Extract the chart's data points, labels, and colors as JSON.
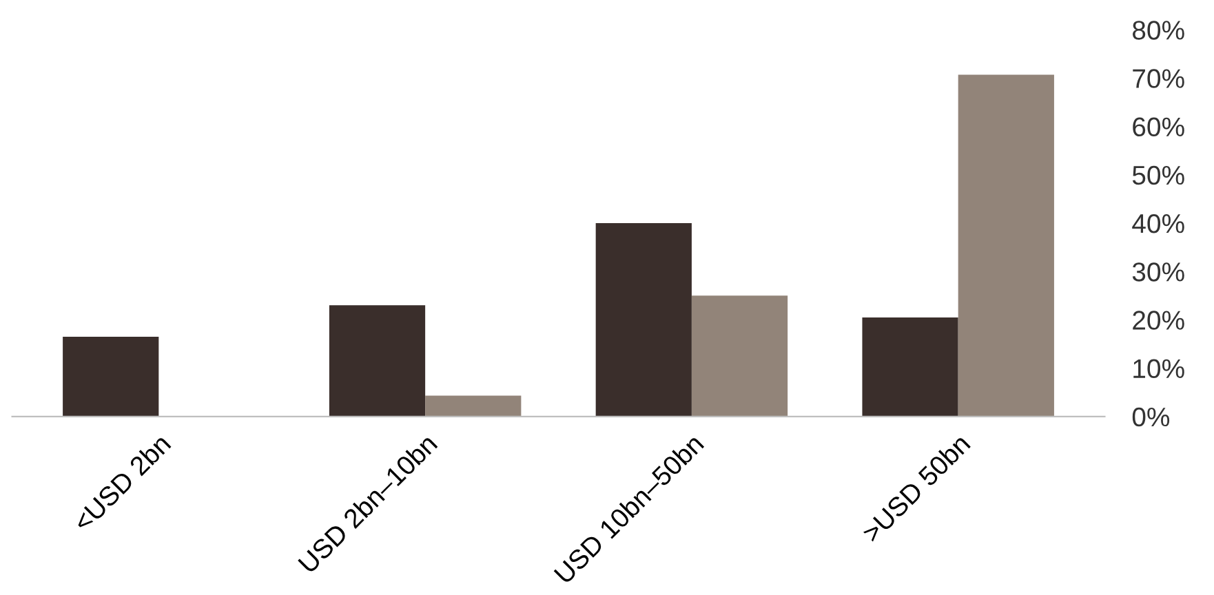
{
  "chart_data": {
    "type": "bar",
    "categories": [
      "<USD 2bn",
      "USD 2bn–10bn",
      "USD 10bn–50bn",
      ">USD 50bn"
    ],
    "series": [
      {
        "color": "#3a2e2b",
        "values": [
          16.5,
          23,
          40,
          20.5
        ]
      },
      {
        "color": "#928479",
        "values": [
          0,
          4.3,
          25,
          70.7
        ]
      }
    ],
    "ylim": [
      0,
      80
    ],
    "yticks": [
      {
        "value": 0,
        "label": "0%"
      },
      {
        "value": 10,
        "label": "10%"
      },
      {
        "value": 20,
        "label": "20%"
      },
      {
        "value": 30,
        "label": "30%"
      },
      {
        "value": 40,
        "label": "40%"
      },
      {
        "value": 50,
        "label": "50%"
      },
      {
        "value": 60,
        "label": "60%"
      },
      {
        "value": 70,
        "label": "70%"
      },
      {
        "value": 80,
        "label": "80%"
      }
    ],
    "grid": false
  }
}
